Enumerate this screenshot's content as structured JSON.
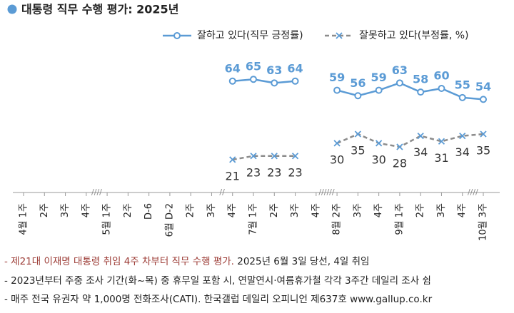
{
  "chart_data": {
    "type": "line",
    "title": "대통령 직무 수행 평가: 2025년",
    "categories": [
      "4월 1주",
      "2주",
      "3주",
      "4주",
      "5월 1주",
      "2주",
      "D-6",
      "6월 D-2",
      "2주",
      "3주",
      "4주",
      "7월 1주",
      "2주",
      "3주",
      "4주",
      "8월 2주",
      "3주",
      "4주",
      "9월 1주",
      "2주",
      "3주",
      "4주",
      "10월 3주"
    ],
    "series": [
      {
        "name": "잘하고 있다(직무 긍정률)",
        "color": "#5b9bd5",
        "marker": "circle",
        "label_position": "above",
        "values": [
          null,
          null,
          null,
          null,
          null,
          null,
          null,
          null,
          null,
          null,
          64,
          65,
          63,
          64,
          null,
          59,
          56,
          59,
          63,
          58,
          60,
          55,
          54
        ]
      },
      {
        "name": "잘못하고 있다(부정률, %)",
        "color": "#8c8c8c",
        "marker": "x",
        "label_position": "below",
        "values": [
          null,
          null,
          null,
          null,
          null,
          null,
          null,
          null,
          null,
          null,
          21,
          23,
          23,
          23,
          null,
          30,
          35,
          30,
          28,
          34,
          31,
          34,
          35
        ]
      }
    ],
    "ylim": [
      3,
      85
    ],
    "axis_breaks": [
      "////",
      "//",
      "//////",
      "////"
    ],
    "note_highlight": "- 제21대 이재명 대통령 취임 4주 차부터 직무 수행 평가.",
    "notes": [
      " 2025년 6월 3일 당선, 4일 취임",
      "- 2023년부터 주중 조사 기간(화~목) 중 휴무일 포함 시, 연말연시·여름휴가철 각각 3주간 데일리 조사 쉼",
      "- 매주 전국 유권자 약 1,000명 전화조사(CATI). 한국갤럽 데일리 오피니언 제637호 www.gallup.co.kr"
    ]
  }
}
